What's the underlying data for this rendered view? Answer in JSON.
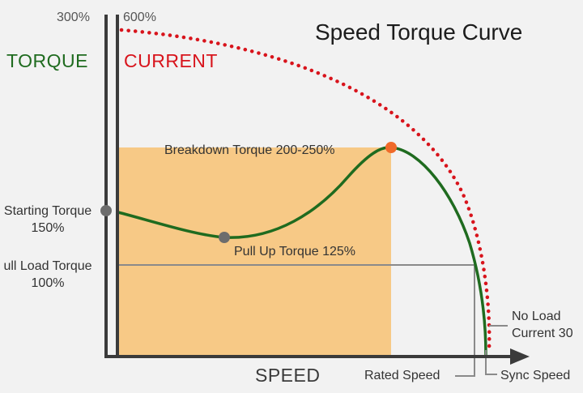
{
  "title": "Speed Torque Curve",
  "torque_axis": {
    "label": "TORQUE",
    "max_label": "300%"
  },
  "current_axis": {
    "label": "CURRENT",
    "max_label": "600%"
  },
  "x_axis_label": "SPEED",
  "annotations": {
    "breakdown": "Breakdown Torque 200-250%",
    "starting_line1": "Starting Torque",
    "starting_line2": "150%",
    "pull_up": "Pull Up Torque 125%",
    "full_load_line1": "ull Load Torque",
    "full_load_line2": "100%",
    "no_load_line1": "No Load",
    "no_load_line2": "Current 30",
    "rated_speed": "Rated Speed",
    "sync_speed": "Sync Speed"
  },
  "colors": {
    "torque": "#1f6b1f",
    "current": "#d8141c",
    "operating_region": "#f7c986",
    "axis": "#3b3b3b",
    "breakdown_point": "#f06a2a",
    "marker_points": "#6d6d6d"
  }
}
